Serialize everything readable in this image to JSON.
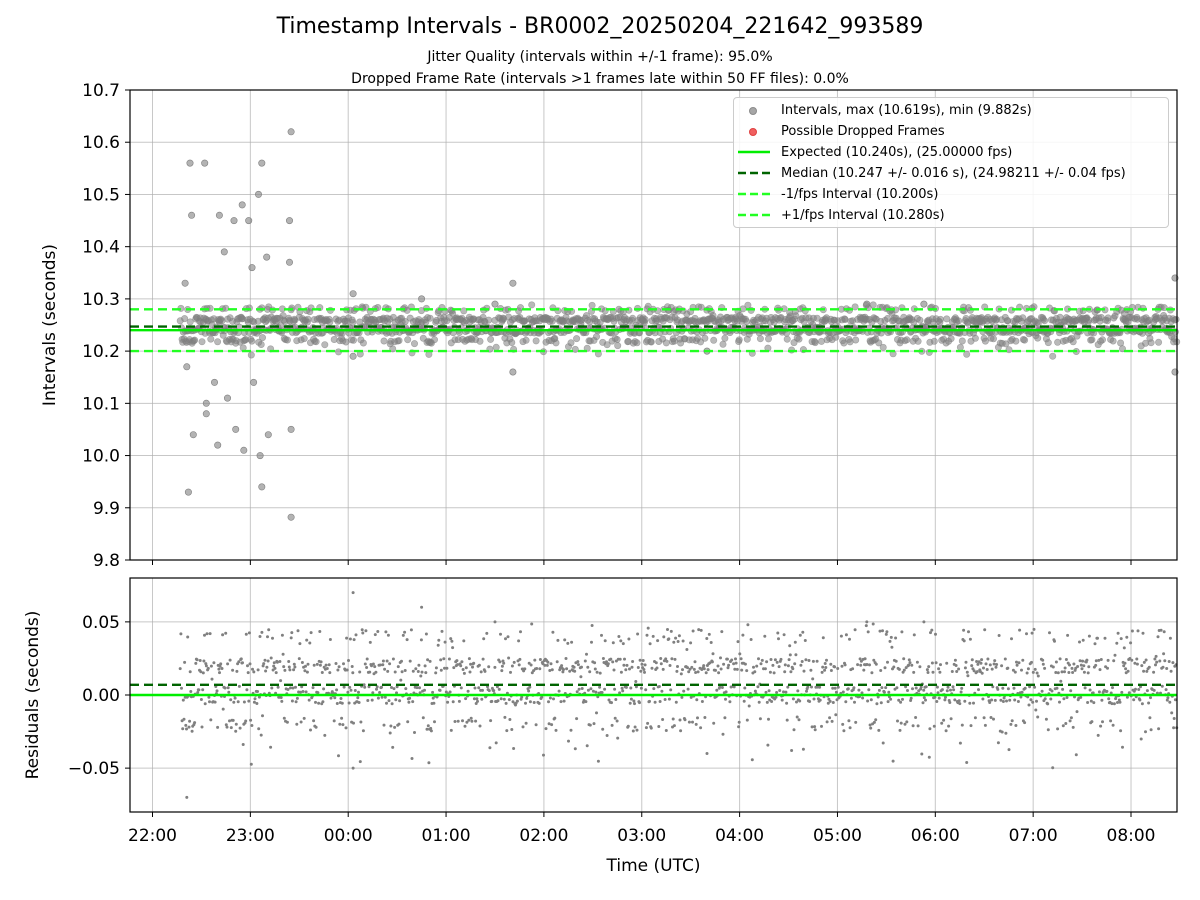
{
  "title": "Timestamp Intervals - BR0002_20250204_221642_993589",
  "subtitle_1": "Jitter Quality (intervals within +/-1 frame): 95.0%",
  "subtitle_2": "Dropped Frame Rate (intervals >1 frames late within 50 FF files): 0.0%",
  "colors": {
    "scatter": "#808080",
    "dropped": "#ff0000",
    "expected": "#00ee00",
    "median": "#006400",
    "interval_bounds": "#22ff22",
    "grid": "#b0b0b0"
  },
  "chart_data": [
    {
      "type": "scatter",
      "panel": "intervals",
      "ylabel": "Intervals (seconds)",
      "xlim_hours": [
        21.77,
        32.47
      ],
      "ylim": [
        9.8,
        10.7
      ],
      "yticks": [
        "9.8",
        "9.9",
        "10.0",
        "10.1",
        "10.2",
        "10.3",
        "10.4",
        "10.5",
        "10.6",
        "10.7"
      ],
      "xticks": [
        "22:00",
        "23:00",
        "00:00",
        "01:00",
        "02:00",
        "03:00",
        "04:00",
        "05:00",
        "06:00",
        "07:00",
        "08:00"
      ],
      "grid": true,
      "legend_position": "top-right",
      "legend": [
        "Intervals, max (10.619s), min (9.882s)",
        "Possible Dropped Frames",
        "Expected (10.240s), (25.00000 fps)",
        "Median (10.247 +/- 0.016 s), (24.98211 +/- 0.04 fps)",
        "-1/fps Interval (10.200s)",
        "+1/fps Interval (10.280s)"
      ],
      "reference_lines": {
        "expected": 10.24,
        "median": 10.247,
        "minus_1_fps": 10.2,
        "plus_1_fps": 10.28
      },
      "summary": {
        "max": 10.619,
        "min": 9.882,
        "start_time": "22:17",
        "end_time": "08:28"
      },
      "sample_points": [
        {
          "t": "22:20",
          "y": 10.33
        },
        {
          "t": "22:21",
          "y": 10.17
        },
        {
          "t": "22:22",
          "y": 9.93
        },
        {
          "t": "22:23",
          "y": 10.56
        },
        {
          "t": "22:24",
          "y": 10.46
        },
        {
          "t": "22:25",
          "y": 10.04
        },
        {
          "t": "22:32",
          "y": 10.56
        },
        {
          "t": "22:33",
          "y": 10.08
        },
        {
          "t": "22:33",
          "y": 10.1
        },
        {
          "t": "22:38",
          "y": 10.14
        },
        {
          "t": "22:40",
          "y": 10.02
        },
        {
          "t": "22:41",
          "y": 10.46
        },
        {
          "t": "22:44",
          "y": 10.39
        },
        {
          "t": "22:46",
          "y": 10.11
        },
        {
          "t": "22:50",
          "y": 10.45
        },
        {
          "t": "22:51",
          "y": 10.05
        },
        {
          "t": "22:55",
          "y": 10.48
        },
        {
          "t": "22:56",
          "y": 10.01
        },
        {
          "t": "22:59",
          "y": 10.45
        },
        {
          "t": "23:01",
          "y": 10.36
        },
        {
          "t": "23:02",
          "y": 10.14
        },
        {
          "t": "23:05",
          "y": 10.5
        },
        {
          "t": "23:06",
          "y": 10.0
        },
        {
          "t": "23:07",
          "y": 10.56
        },
        {
          "t": "23:07",
          "y": 9.94
        },
        {
          "t": "23:10",
          "y": 10.38
        },
        {
          "t": "23:11",
          "y": 10.04
        },
        {
          "t": "23:24",
          "y": 10.37
        },
        {
          "t": "23:24",
          "y": 10.45
        },
        {
          "t": "23:25",
          "y": 10.62
        },
        {
          "t": "23:25",
          "y": 10.05
        },
        {
          "t": "23:25",
          "y": 9.882
        },
        {
          "t": "00:03",
          "y": 10.31
        },
        {
          "t": "00:03",
          "y": 10.19
        },
        {
          "t": "00:45",
          "y": 10.3
        },
        {
          "t": "01:30",
          "y": 10.29
        },
        {
          "t": "01:41",
          "y": 10.33
        },
        {
          "t": "01:41",
          "y": 10.16
        },
        {
          "t": "03:40",
          "y": 10.2
        },
        {
          "t": "05:18",
          "y": 10.29
        },
        {
          "t": "05:53",
          "y": 10.29
        },
        {
          "t": "08:27",
          "y": 10.34
        },
        {
          "t": "08:27",
          "y": 10.16
        }
      ]
    },
    {
      "type": "scatter",
      "panel": "residuals",
      "ylabel": "Residuals (seconds)",
      "xlabel": "Time (UTC)",
      "xlim_hours": [
        21.77,
        32.47
      ],
      "ylim": [
        -0.08,
        0.08
      ],
      "yticks": [
        "−0.05",
        "0.00",
        "0.05"
      ],
      "xticks": [
        "22:00",
        "23:00",
        "00:00",
        "01:00",
        "02:00",
        "03:00",
        "04:00",
        "05:00",
        "06:00",
        "07:00",
        "08:00"
      ],
      "grid": true,
      "reference_lines": {
        "expected_residual": 0.0,
        "median_residual": 0.007
      }
    }
  ]
}
